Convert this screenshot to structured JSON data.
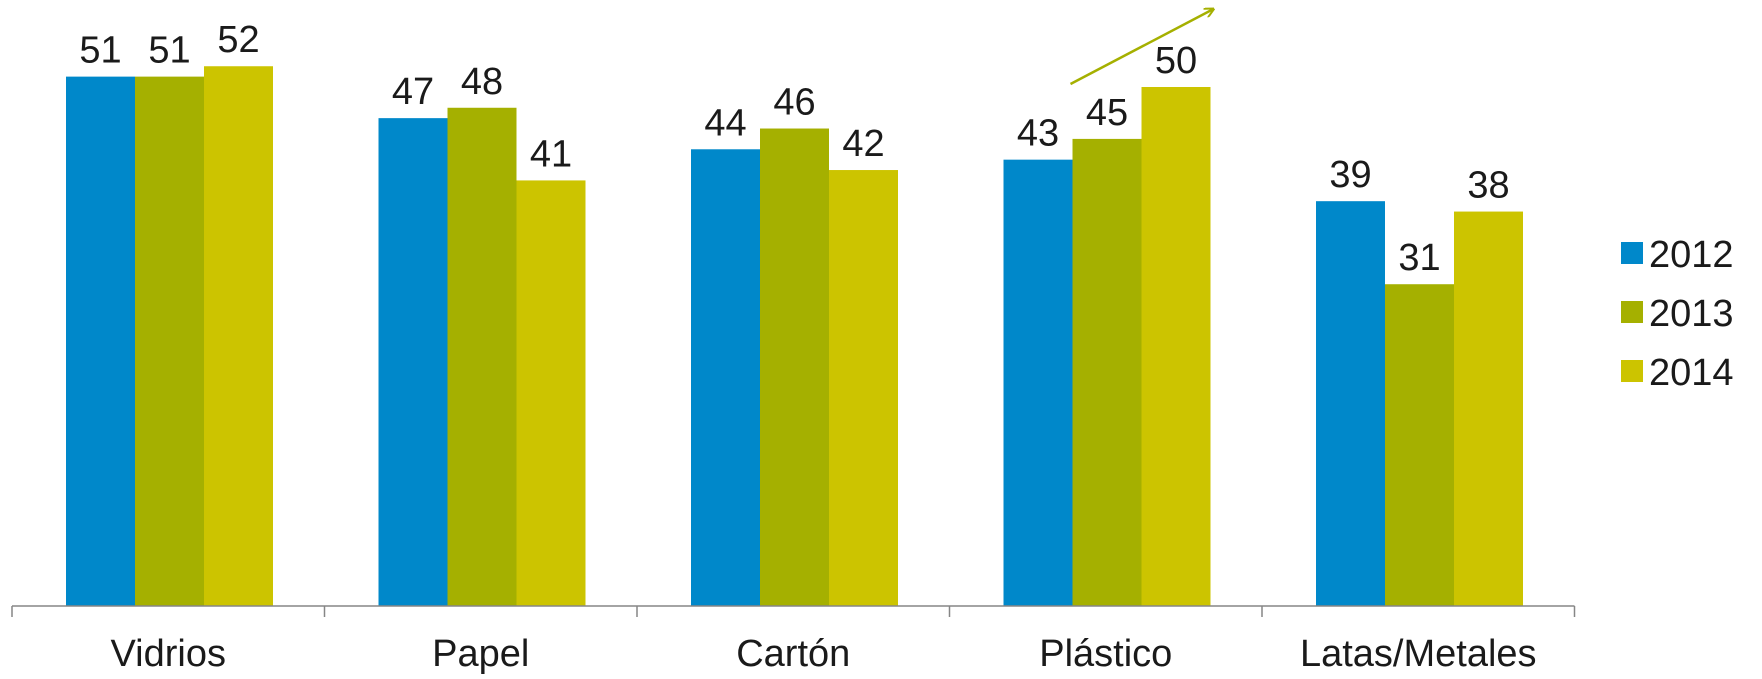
{
  "chart_data": {
    "type": "bar",
    "title": "",
    "xlabel": "",
    "ylabel": "",
    "ylim": [
      0,
      60
    ],
    "grid": false,
    "legend_position": "right",
    "categories": [
      "Vidrios",
      "Papel",
      "Cartón",
      "Plástico",
      "Latas/Metales"
    ],
    "series": [
      {
        "name": "2012",
        "color": "#0088CA",
        "values": [
          51,
          47,
          44,
          43,
          39
        ]
      },
      {
        "name": "2013",
        "color": "#A5B000",
        "values": [
          51,
          48,
          46,
          45,
          31
        ]
      },
      {
        "name": "2014",
        "color": "#CCC400",
        "values": [
          52,
          41,
          42,
          50,
          38
        ]
      }
    ],
    "annotations": [
      {
        "type": "arrow",
        "category": "Plástico",
        "color": "#A5B000",
        "meaning": "upward-trend-arrow"
      }
    ]
  }
}
